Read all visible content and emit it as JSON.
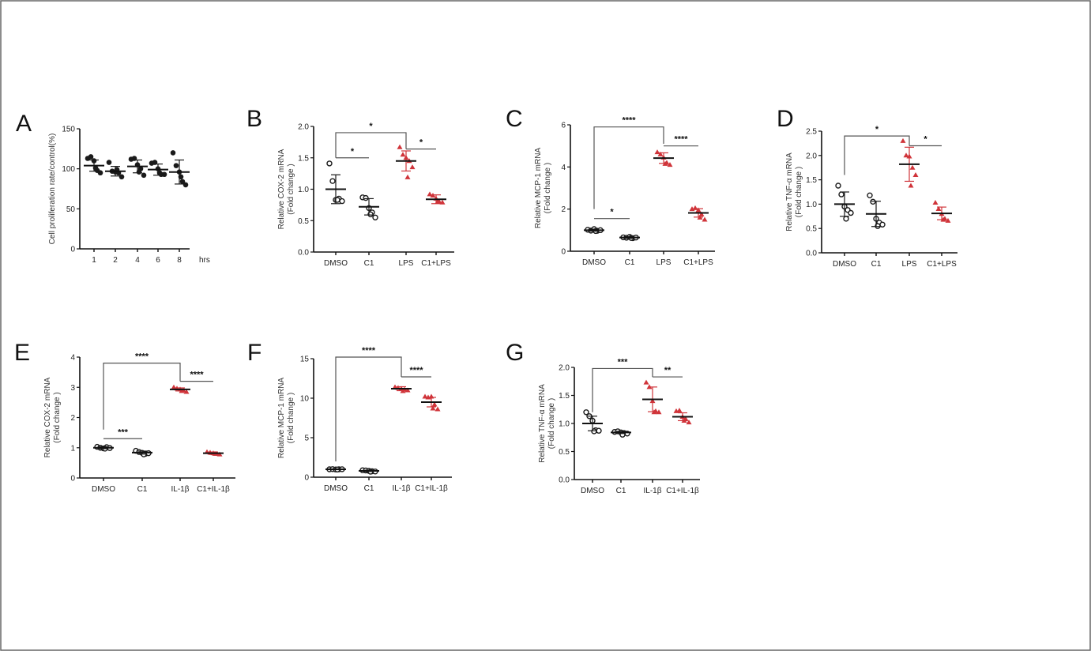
{
  "colors": {
    "black": "#1a1a1a",
    "red": "#d0343a",
    "bracket": "#555555",
    "frame": "#666666"
  },
  "chart_data": [
    {
      "panel": "A",
      "type": "scatter-dot-plot",
      "ylabel": [
        "Cell proliferation rate/control(%)"
      ],
      "xunit": "hrs",
      "categories": [
        "1",
        "2",
        "4",
        "6",
        "8"
      ],
      "ylim": [
        0,
        150
      ],
      "yticks": [
        "0",
        "50",
        "100",
        "150"
      ],
      "ytick_values": [
        0,
        50,
        100,
        150
      ],
      "groups": [
        {
          "mean": 104,
          "sd": 7,
          "marker": "filled-circle",
          "color": "black",
          "points": [
            113,
            115,
            110,
            98,
            95,
            101
          ]
        },
        {
          "mean": 97,
          "sd": 6,
          "marker": "filled-circle",
          "color": "black",
          "points": [
            108,
            97,
            96,
            95,
            90,
            99
          ]
        },
        {
          "mean": 103,
          "sd": 8,
          "marker": "filled-circle",
          "color": "black",
          "points": [
            112,
            113,
            105,
            100,
            92,
            96
          ]
        },
        {
          "mean": 99,
          "sd": 7,
          "marker": "filled-circle",
          "color": "black",
          "points": [
            107,
            108,
            100,
            93,
            93,
            95
          ]
        },
        {
          "mean": 96,
          "sd": 15,
          "marker": "filled-circle",
          "color": "black",
          "points": [
            120,
            104,
            96,
            84,
            80,
            90
          ]
        }
      ],
      "brackets": []
    },
    {
      "panel": "B",
      "type": "scatter-dot-plot",
      "ylabel": [
        "Relative COX-2 mRNA",
        "(Fold change )"
      ],
      "categories": [
        "DMSO",
        "C1",
        "LPS",
        "C1+LPS"
      ],
      "ylim": [
        0,
        2
      ],
      "yticks": [
        "0.0",
        "0.5",
        "1.0",
        "1.5",
        "2.0"
      ],
      "ytick_values": [
        0,
        0.5,
        1,
        1.5,
        2
      ],
      "groups": [
        {
          "mean": 1.0,
          "sd": 0.23,
          "marker": "open-circle",
          "color": "black",
          "points": [
            1.41,
            1.13,
            0.83,
            0.85,
            0.81,
            0.83
          ]
        },
        {
          "mean": 0.72,
          "sd": 0.13,
          "marker": "open-circle",
          "color": "black",
          "points": [
            0.87,
            0.86,
            0.7,
            0.63,
            0.55,
            0.6
          ]
        },
        {
          "mean": 1.45,
          "sd": 0.16,
          "marker": "triangle",
          "color": "red",
          "points": [
            1.67,
            1.55,
            1.5,
            1.45,
            1.35,
            1.19
          ]
        },
        {
          "mean": 0.84,
          "sd": 0.07,
          "marker": "triangle",
          "color": "red",
          "points": [
            0.92,
            0.9,
            0.85,
            0.8,
            0.79,
            0.8
          ]
        }
      ],
      "brackets": [
        {
          "from": 0,
          "to": 2,
          "y": 1.9,
          "from_drop": 1.5,
          "to_drop": 1.64,
          "label": "*"
        },
        {
          "from": 0,
          "to": 1,
          "y": 1.5,
          "label": "*"
        },
        {
          "from": 2,
          "to": 3,
          "y": 1.64,
          "label": "*"
        }
      ]
    },
    {
      "panel": "C",
      "type": "scatter-dot-plot",
      "ylabel": [
        "Relative MCP-1 mRNA",
        "(Fold change )"
      ],
      "categories": [
        "DMSO",
        "C1",
        "LPS",
        "C1+LPS"
      ],
      "ylim": [
        0,
        6
      ],
      "yticks": [
        "0",
        "2",
        "4",
        "6"
      ],
      "ytick_values": [
        0,
        2,
        4,
        6
      ],
      "groups": [
        {
          "mean": 1.0,
          "sd": 0.05,
          "marker": "open-circle",
          "color": "black",
          "points": [
            1.02,
            0.98,
            1.05,
            0.97,
            1.0,
            0.96
          ]
        },
        {
          "mean": 0.65,
          "sd": 0.04,
          "marker": "open-circle",
          "color": "black",
          "points": [
            0.66,
            0.64,
            0.68,
            0.62,
            0.65,
            0.63
          ]
        },
        {
          "mean": 4.42,
          "sd": 0.25,
          "marker": "triangle",
          "color": "red",
          "points": [
            4.7,
            4.6,
            4.45,
            4.2,
            4.1,
            4.15
          ]
        },
        {
          "mean": 1.82,
          "sd": 0.2,
          "marker": "triangle",
          "color": "red",
          "points": [
            2.0,
            2.05,
            1.95,
            1.75,
            1.5,
            1.6
          ]
        }
      ],
      "brackets": [
        {
          "from": 0,
          "to": 2,
          "y": 5.9,
          "from_drop": 2.0,
          "to_drop": 5.1,
          "label": "****"
        },
        {
          "from": 2,
          "to": 3,
          "y": 5.0,
          "label": "****"
        },
        {
          "from": 0,
          "to": 1,
          "y": 1.55,
          "label": "*"
        }
      ]
    },
    {
      "panel": "D",
      "type": "scatter-dot-plot",
      "ylabel": [
        "Relative TNF-α mRNA",
        "(Fold change )"
      ],
      "categories": [
        "DMSO",
        "C1",
        "LPS",
        "C1+LPS"
      ],
      "ylim": [
        0,
        2.5
      ],
      "yticks": [
        "0.0",
        "0.5",
        "1.0",
        "1.5",
        "2.0",
        "2.5"
      ],
      "ytick_values": [
        0,
        0.5,
        1,
        1.5,
        2,
        2.5
      ],
      "groups": [
        {
          "mean": 1.0,
          "sd": 0.25,
          "marker": "open-circle",
          "color": "black",
          "points": [
            1.38,
            1.2,
            0.95,
            0.88,
            0.82,
            0.7
          ]
        },
        {
          "mean": 0.8,
          "sd": 0.26,
          "marker": "open-circle",
          "color": "black",
          "points": [
            1.18,
            1.05,
            0.7,
            0.62,
            0.58,
            0.55
          ]
        },
        {
          "mean": 1.82,
          "sd": 0.35,
          "marker": "triangle",
          "color": "red",
          "points": [
            2.3,
            2.0,
            1.98,
            1.75,
            1.6,
            1.38
          ]
        },
        {
          "mean": 0.81,
          "sd": 0.13,
          "marker": "triangle",
          "color": "red",
          "points": [
            1.03,
            0.9,
            0.8,
            0.7,
            0.66,
            0.68
          ]
        }
      ],
      "brackets": [
        {
          "from": 0,
          "to": 2,
          "y": 2.4,
          "from_drop": 1.6,
          "to_drop": 2.2,
          "label": "*"
        },
        {
          "from": 2,
          "to": 3,
          "y": 2.2,
          "label": "*"
        }
      ]
    },
    {
      "panel": "E",
      "type": "scatter-dot-plot",
      "ylabel": [
        "Relative COX-2 mRNA",
        "(Fold change )"
      ],
      "categories": [
        "DMSO",
        "C1",
        "IL-1β",
        "C1+IL-1β"
      ],
      "ylim": [
        0,
        4
      ],
      "yticks": [
        "0",
        "1",
        "2",
        "3",
        "4"
      ],
      "ytick_values": [
        0,
        1,
        2,
        3,
        4
      ],
      "groups": [
        {
          "mean": 1.0,
          "sd": 0.03,
          "marker": "open-circle",
          "color": "black",
          "points": [
            1.03,
            1.0,
            0.98,
            1.02,
            0.99,
            0.97
          ]
        },
        {
          "mean": 0.84,
          "sd": 0.05,
          "marker": "open-circle",
          "color": "black",
          "points": [
            0.9,
            0.86,
            0.83,
            0.8,
            0.82,
            0.78
          ]
        },
        {
          "mean": 2.93,
          "sd": 0.05,
          "marker": "triangle",
          "color": "red",
          "points": [
            3.0,
            2.96,
            2.93,
            2.9,
            2.85,
            2.88
          ]
        },
        {
          "mean": 0.82,
          "sd": 0.04,
          "marker": "triangle",
          "color": "red",
          "points": [
            0.86,
            0.84,
            0.82,
            0.8,
            0.78,
            0.8
          ]
        }
      ],
      "brackets": [
        {
          "from": 0,
          "to": 2,
          "y": 3.8,
          "from_drop": 1.6,
          "to_drop": 3.2,
          "label": "****"
        },
        {
          "from": 2,
          "to": 3,
          "y": 3.2,
          "label": "****"
        },
        {
          "from": 0,
          "to": 1,
          "y": 1.3,
          "label": "***"
        }
      ]
    },
    {
      "panel": "F",
      "type": "scatter-dot-plot",
      "ylabel": [
        "Relative MCP-1 mRNA",
        "(Fold change )"
      ],
      "categories": [
        "DMSO",
        "C1",
        "IL-1β",
        "C1+IL-1β"
      ],
      "ylim": [
        0,
        15
      ],
      "yticks": [
        "0",
        "5",
        "10",
        "15"
      ],
      "ytick_values": [
        0,
        5,
        10,
        15
      ],
      "groups": [
        {
          "mean": 1.0,
          "sd": 0.05,
          "marker": "open-circle",
          "color": "black",
          "points": [
            1.0,
            1.02,
            0.98,
            1.0,
            1.01,
            0.97
          ]
        },
        {
          "mean": 0.8,
          "sd": 0.08,
          "marker": "open-circle",
          "color": "black",
          "points": [
            0.88,
            0.85,
            0.8,
            0.75,
            0.72,
            0.7
          ]
        },
        {
          "mean": 11.2,
          "sd": 0.25,
          "marker": "triangle",
          "color": "red",
          "points": [
            11.4,
            11.3,
            11.2,
            11.1,
            11.0,
            10.9
          ]
        },
        {
          "mean": 9.5,
          "sd": 0.6,
          "marker": "triangle",
          "color": "red",
          "points": [
            10.2,
            10.1,
            10.2,
            9.2,
            8.6,
            8.7
          ]
        }
      ],
      "brackets": [
        {
          "from": 0,
          "to": 2,
          "y": 15.2,
          "from_drop": 2.0,
          "to_drop": 12.7,
          "label": "****"
        },
        {
          "from": 2,
          "to": 3,
          "y": 12.7,
          "label": "****"
        }
      ]
    },
    {
      "panel": "G",
      "type": "scatter-dot-plot",
      "ylabel": [
        "Relative TNF-α mRNA",
        "(Fold change )"
      ],
      "categories": [
        "DMSO",
        "C1",
        "IL-1β",
        "C1+IL-1β"
      ],
      "ylim": [
        0,
        2
      ],
      "yticks": [
        "0.0",
        "0.5",
        "1.0",
        "1.5",
        "2.0"
      ],
      "ytick_values": [
        0,
        0.5,
        1,
        1.5,
        2
      ],
      "groups": [
        {
          "mean": 1.0,
          "sd": 0.13,
          "marker": "open-circle",
          "color": "black",
          "points": [
            1.2,
            1.13,
            1.05,
            0.88,
            0.87,
            0.86
          ]
        },
        {
          "mean": 0.84,
          "sd": 0.02,
          "marker": "open-circle",
          "color": "black",
          "points": [
            0.85,
            0.86,
            0.84,
            0.83,
            0.82,
            0.8
          ]
        },
        {
          "mean": 1.43,
          "sd": 0.22,
          "marker": "triangle",
          "color": "red",
          "points": [
            1.73,
            1.65,
            1.4,
            1.22,
            1.2,
            1.2
          ]
        },
        {
          "mean": 1.12,
          "sd": 0.07,
          "marker": "triangle",
          "color": "red",
          "points": [
            1.22,
            1.23,
            1.12,
            1.08,
            1.02,
            1.05
          ]
        }
      ],
      "brackets": [
        {
          "from": 0,
          "to": 2,
          "y": 1.98,
          "from_drop": 1.2,
          "to_drop": 1.83,
          "label": "***"
        },
        {
          "from": 2,
          "to": 3,
          "y": 1.83,
          "label": "**"
        }
      ]
    }
  ]
}
